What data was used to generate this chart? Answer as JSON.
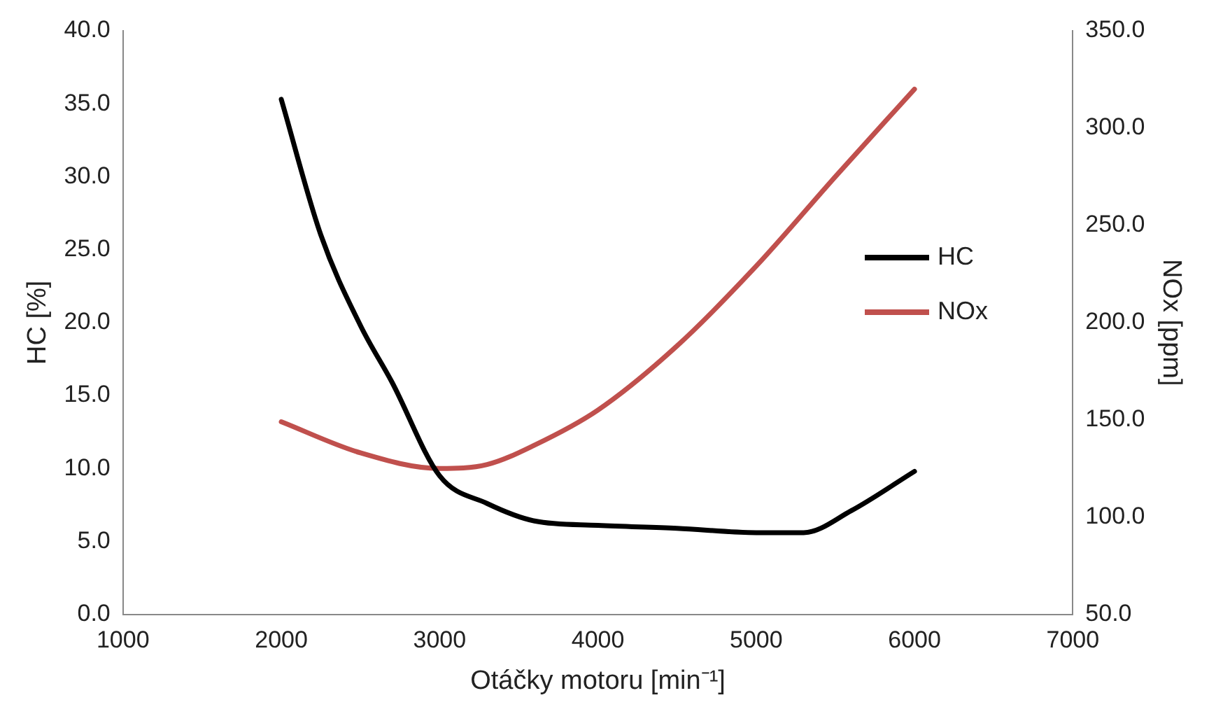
{
  "chart_data": {
    "type": "line",
    "xlabel": "Otáčky motoru [min⁻¹]",
    "ylabel": "HC [%]",
    "y2label": "NOx [ppm]",
    "xlim": [
      1000,
      7000
    ],
    "xticks": [
      1000,
      2000,
      3000,
      4000,
      5000,
      6000,
      7000
    ],
    "ylim": [
      0,
      40
    ],
    "yticks": [
      {
        "value": 0,
        "label": "0.0"
      },
      {
        "value": 5,
        "label": "5.0"
      },
      {
        "value": 10,
        "label": "10.0"
      },
      {
        "value": 15,
        "label": "15.0"
      },
      {
        "value": 20,
        "label": "20.0"
      },
      {
        "value": 25,
        "label": "25.0"
      },
      {
        "value": 30,
        "label": "30.0"
      },
      {
        "value": 35,
        "label": "35.0"
      },
      {
        "value": 40,
        "label": "40.0"
      }
    ],
    "y2lim": [
      50,
      350
    ],
    "y2ticks": [
      {
        "value": 50,
        "label": "50.0"
      },
      {
        "value": 100,
        "label": "100.0"
      },
      {
        "value": 150,
        "label": "150.0"
      },
      {
        "value": 200,
        "label": "200.0"
      },
      {
        "value": 250,
        "label": "250.0"
      },
      {
        "value": 300,
        "label": "300.0"
      },
      {
        "value": 350,
        "label": "350.0"
      }
    ],
    "grid": false,
    "legend": "right",
    "marker": "none",
    "line_style": "solid",
    "series": [
      {
        "name": "HC",
        "color": "#000000",
        "x": [
          2000,
          2250,
          2500,
          2700,
          3000,
          3300,
          3600,
          4000,
          4500,
          5000,
          5300,
          5600,
          6000
        ],
        "values": [
          35.3,
          26,
          19.8,
          15.9,
          9.5,
          7.6,
          6.4,
          6.1,
          5.9,
          5.6,
          5.6,
          7.1,
          9.8
        ]
      },
      {
        "name": "NOx",
        "color": "#c0504d",
        "axis": "y2",
        "x": [
          2000,
          2500,
          3000,
          3300,
          3600,
          4000,
          4500,
          5000,
          5500,
          6000
        ],
        "values": [
          149,
          133,
          125,
          127,
          137,
          155,
          188,
          229,
          275,
          320
        ]
      }
    ]
  }
}
